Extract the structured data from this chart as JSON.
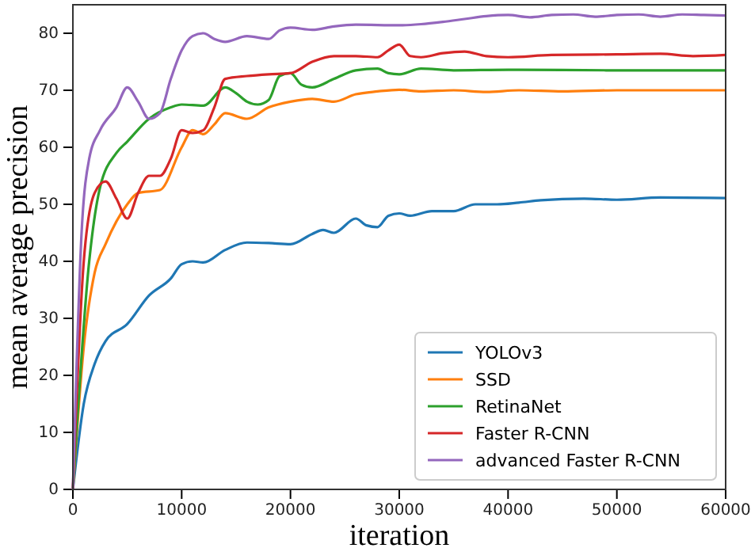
{
  "chart_data": {
    "type": "line",
    "xlabel": "iteration",
    "ylabel": "mean average precision",
    "xlim": [
      0,
      60000
    ],
    "ylim": [
      0,
      85
    ],
    "xticks": [
      0,
      10000,
      20000,
      30000,
      40000,
      50000,
      60000
    ],
    "yticks": [
      0,
      10,
      20,
      30,
      40,
      50,
      60,
      70,
      80
    ],
    "grid": false,
    "legend": "bottom right",
    "marker": "none",
    "line_style": "solid",
    "series": [
      {
        "name": "YOLOv3",
        "color": "#1f77b4",
        "x": [
          0,
          1000,
          2000,
          3000,
          5000,
          7000,
          9000,
          10000,
          11000,
          12000,
          14000,
          16000,
          18000,
          20000,
          22000,
          23000,
          24000,
          26000,
          27000,
          28000,
          29000,
          30000,
          31000,
          33000,
          35000,
          37000,
          39000,
          41000,
          43000,
          47000,
          50000,
          54000,
          60000
        ],
        "values": [
          0,
          15,
          22,
          26,
          29,
          34,
          37,
          39.5,
          40,
          39.8,
          42,
          43.3,
          43.2,
          43,
          44.8,
          45.5,
          45,
          47.5,
          46.3,
          46,
          48,
          48.4,
          48,
          48.8,
          48.8,
          50,
          50,
          50.3,
          50.7,
          51,
          50.8,
          51.2,
          51.1
        ]
      },
      {
        "name": "SSD",
        "color": "#ff7f0e",
        "x": [
          0,
          1000,
          2000,
          3000,
          5000,
          6000,
          8000,
          10000,
          11000,
          12000,
          13000,
          14000,
          16000,
          18000,
          20000,
          22000,
          24000,
          26000,
          28000,
          30000,
          32000,
          35000,
          38000,
          41000,
          45000,
          50000,
          60000
        ],
        "values": [
          0,
          25,
          38,
          43,
          50,
          52,
          52.5,
          60,
          63,
          62.3,
          64,
          66,
          65,
          67,
          68,
          68.5,
          68,
          69.3,
          69.8,
          70.1,
          69.8,
          70,
          69.7,
          70,
          69.8,
          70,
          70
        ]
      },
      {
        "name": "RetinaNet",
        "color": "#2ca02c",
        "x": [
          0,
          1500,
          2500,
          4000,
          5000,
          7000,
          9000,
          10000,
          12000,
          14000,
          15000,
          16000,
          17000,
          18000,
          19000,
          20000,
          21000,
          22000,
          24000,
          26000,
          28000,
          29000,
          30000,
          32000,
          35000,
          40000,
          50000,
          60000
        ],
        "values": [
          0,
          40,
          53,
          59,
          61,
          65,
          67,
          67.5,
          67.3,
          70.5,
          69.5,
          68,
          67.5,
          68.3,
          72.5,
          73,
          71,
          70.5,
          72,
          73.5,
          73.8,
          73,
          72.8,
          73.8,
          73.5,
          73.6,
          73.5,
          73.5
        ]
      },
      {
        "name": "Faster R-CNN",
        "color": "#d62728",
        "x": [
          0,
          1000,
          2000,
          3000,
          4000,
          5000,
          6000,
          7000,
          8000,
          9000,
          10000,
          11000,
          12000,
          13000,
          14000,
          16000,
          18000,
          20000,
          22000,
          24000,
          26000,
          28000,
          29000,
          30000,
          31000,
          32000,
          34000,
          36000,
          38000,
          40000,
          44000,
          50000,
          54000,
          57000,
          60000
        ],
        "values": [
          0,
          40,
          52,
          54,
          51,
          47.5,
          52,
          55,
          55,
          58,
          63,
          62.5,
          63,
          67,
          72,
          72.5,
          72.8,
          73,
          75,
          76,
          76,
          75.8,
          77,
          78,
          76,
          75.8,
          76.5,
          76.8,
          76,
          75.8,
          76.2,
          76.3,
          76.4,
          76,
          76.2
        ]
      },
      {
        "name": "advanced Faster R-CNN",
        "color": "#9467bd",
        "x": [
          0,
          800,
          1500,
          2500,
          4000,
          5000,
          6000,
          7000,
          8000,
          9000,
          10000,
          11000,
          12000,
          13000,
          14000,
          16000,
          18000,
          19000,
          20000,
          22000,
          24000,
          26000,
          30000,
          32000,
          34000,
          36000,
          38000,
          40000,
          42000,
          44000,
          46000,
          48000,
          50000,
          52000,
          54000,
          56000,
          58000,
          60000
        ],
        "values": [
          0,
          45,
          58,
          63,
          67,
          70.5,
          68,
          65,
          66,
          72,
          77,
          79.5,
          80,
          79,
          78.5,
          79.5,
          79,
          80.5,
          81,
          80.6,
          81.2,
          81.5,
          81.4,
          81.6,
          82,
          82.5,
          83,
          83.2,
          82.8,
          83.2,
          83.3,
          82.9,
          83.2,
          83.3,
          82.9,
          83.3,
          83.2,
          83.1
        ]
      }
    ]
  }
}
